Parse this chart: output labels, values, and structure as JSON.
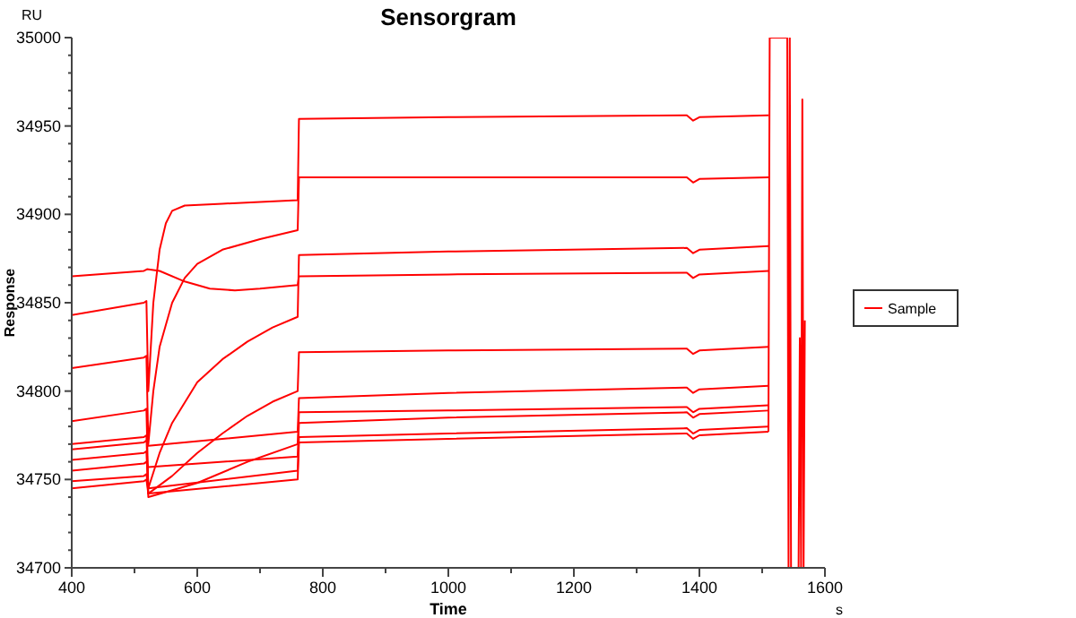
{
  "chart_data": {
    "type": "line",
    "title": "Sensorgram",
    "xlabel": "Time",
    "ylabel": "Response",
    "annotations": [
      "RU",
      "s"
    ],
    "legend": "right",
    "line_style": "solid",
    "xlim": [
      400,
      1600
    ],
    "ylim": [
      34700,
      35000
    ],
    "xticks": [
      400,
      {
        "value": 500,
        "label": null
      },
      600,
      {
        "value": 700,
        "label": null
      },
      800,
      {
        "value": 900,
        "label": null
      },
      1000,
      {
        "value": 1100,
        "label": null
      },
      1200,
      {
        "value": 1300,
        "label": null
      },
      1400,
      {
        "value": 1500,
        "label": null
      },
      1600
    ],
    "yticks": [
      34700,
      {
        "value": 34710,
        "label": null
      },
      {
        "value": 34720,
        "label": null
      },
      {
        "value": 34730,
        "label": null
      },
      {
        "value": 34740,
        "label": null
      },
      34750,
      {
        "value": 34760,
        "label": null
      },
      {
        "value": 34770,
        "label": null
      },
      {
        "value": 34780,
        "label": null
      },
      {
        "value": 34790,
        "label": null
      },
      34800,
      {
        "value": 34810,
        "label": null
      },
      {
        "value": 34820,
        "label": null
      },
      {
        "value": 34830,
        "label": null
      },
      {
        "value": 34840,
        "label": null
      },
      34850,
      {
        "value": 34860,
        "label": null
      },
      {
        "value": 34870,
        "label": null
      },
      {
        "value": 34880,
        "label": null
      },
      {
        "value": 34890,
        "label": null
      },
      34900,
      {
        "value": 34910,
        "label": null
      },
      {
        "value": 34920,
        "label": null
      },
      {
        "value": 34930,
        "label": null
      },
      {
        "value": 34940,
        "label": null
      },
      34950,
      {
        "value": 34960,
        "label": null
      },
      {
        "value": 34970,
        "label": null
      },
      {
        "value": 34980,
        "label": null
      },
      {
        "value": 34990,
        "label": null
      },
      35000
    ],
    "series": [
      {
        "name": "Sample",
        "color": "#ff0000",
        "x": [
          400,
          515,
          520,
          540,
          580,
          620,
          660,
          700,
          760,
          762,
          1000,
          1380,
          1390,
          1400,
          1510
        ],
        "values": [
          34865,
          34868,
          34869,
          34868,
          34862,
          34858,
          34857,
          34858,
          34860,
          34865,
          34866,
          34867,
          34864,
          34866,
          34868
        ]
      },
      {
        "color": "#ff0000",
        "x": [
          400,
          515,
          519,
          522,
          530,
          540,
          550,
          560,
          580,
          640,
          700,
          760,
          762,
          1000,
          1380,
          1390,
          1400,
          1510
        ],
        "values": [
          34843,
          34850,
          34851,
          34800,
          34850,
          34880,
          34895,
          34902,
          34905,
          34906,
          34907,
          34908,
          34954,
          34955,
          34956,
          34953,
          34955,
          34956
        ]
      },
      {
        "color": "#ff0000",
        "x": [
          400,
          515,
          519,
          522,
          530,
          540,
          560,
          580,
          600,
          640,
          700,
          760,
          762,
          1000,
          1380,
          1390,
          1400,
          1510
        ],
        "values": [
          34813,
          34819,
          34820,
          34770,
          34800,
          34825,
          34850,
          34864,
          34872,
          34880,
          34886,
          34891,
          34921,
          34921,
          34921,
          34918,
          34920,
          34921
        ]
      },
      {
        "color": "#ff0000",
        "x": [
          400,
          515,
          519,
          522,
          540,
          560,
          600,
          640,
          680,
          720,
          760,
          762,
          1000,
          1380,
          1390,
          1400,
          1510
        ],
        "values": [
          34783,
          34789,
          34790,
          34745,
          34765,
          34782,
          34805,
          34818,
          34828,
          34836,
          34842,
          34877,
          34879,
          34881,
          34878,
          34880,
          34882
        ]
      },
      {
        "color": "#ff0000",
        "x": [
          400,
          515,
          519,
          522,
          560,
          600,
          640,
          680,
          720,
          760,
          762,
          1000,
          1380,
          1390,
          1400,
          1510
        ],
        "values": [
          34770,
          34774,
          34775,
          34742,
          34752,
          34765,
          34776,
          34786,
          34794,
          34800,
          34822,
          34823,
          34824,
          34821,
          34823,
          34825
        ]
      },
      {
        "color": "#ff0000",
        "x": [
          400,
          515,
          519,
          522,
          760,
          762,
          1000,
          1380,
          1390,
          1400,
          1510
        ],
        "values": [
          34767,
          34771,
          34772,
          34769,
          34777,
          34796,
          34799,
          34802,
          34799,
          34801,
          34803
        ]
      },
      {
        "color": "#ff0000",
        "x": [
          400,
          515,
          519,
          522,
          600,
          680,
          760,
          762,
          1000,
          1380,
          1390,
          1400,
          1510
        ],
        "values": [
          34761,
          34765,
          34766,
          34740,
          34748,
          34760,
          34770,
          34788,
          34789,
          34791,
          34788,
          34790,
          34792
        ]
      },
      {
        "color": "#ff0000",
        "x": [
          400,
          515,
          519,
          522,
          760,
          762,
          1000,
          1380,
          1390,
          1400,
          1510
        ],
        "values": [
          34755,
          34759,
          34760,
          34757,
          34763,
          34782,
          34785,
          34788,
          34785,
          34787,
          34789
        ]
      },
      {
        "color": "#ff0000",
        "x": [
          400,
          515,
          519,
          522,
          760,
          762,
          1000,
          1380,
          1390,
          1400,
          1510
        ],
        "values": [
          34749,
          34752,
          34753,
          34745,
          34755,
          34774,
          34776,
          34779,
          34776,
          34778,
          34780
        ]
      },
      {
        "color": "#ff0000",
        "x": [
          400,
          515,
          519,
          522,
          760,
          762,
          1000,
          1380,
          1390,
          1400,
          1510
        ],
        "values": [
          34745,
          34749,
          34750,
          34742,
          34750,
          34771,
          34773,
          34776,
          34773,
          34775,
          34777
        ]
      },
      {
        "color": "#ff0000",
        "x": [
          1510,
          1512,
          1540,
          1542,
          1544,
          1546,
          1558,
          1560,
          1562,
          1564,
          1566,
          1568
        ],
        "values": [
          34777,
          35000,
          35000,
          34700,
          35000,
          34700,
          34700,
          34830,
          34700,
          34965,
          34700,
          34840
        ]
      }
    ]
  }
}
